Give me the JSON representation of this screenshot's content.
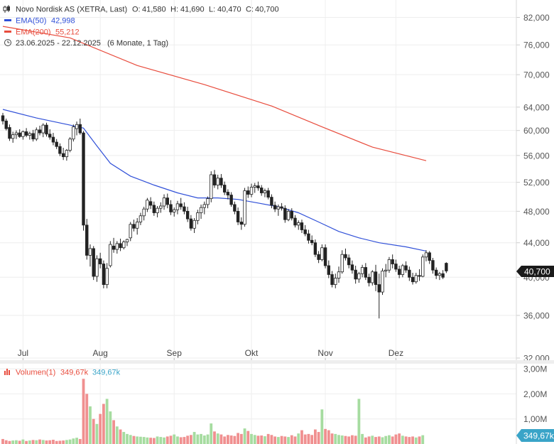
{
  "legend": {
    "title": "Novo Nordisk AS (XETRA, Last)",
    "ohlc": [
      {
        "label": "O:",
        "value": "41,580"
      },
      {
        "label": "H:",
        "value": "41,690"
      },
      {
        "label": "L:",
        "value": "40,470"
      },
      {
        "label": "C:",
        "value": "40,700"
      }
    ],
    "ema50": {
      "label": "EMA(50)",
      "value": "42,998",
      "color": "#3050d8"
    },
    "ema200": {
      "label": "EMA(200)",
      "value": "55,212",
      "color": "#e84c3d"
    },
    "range": "23.06.2025 - 22.12.2025",
    "range_note": "(6 Monate, 1 Tag)"
  },
  "last_price_badge": "40,700",
  "volume_legend": {
    "label": "Volumen(1)",
    "value_red": "349,67k",
    "value_blue": "349,67k"
  },
  "volume_badge": "349,67k",
  "colors": {
    "up": "#a6dca0",
    "down": "#f09090",
    "ema50": "#3050d8",
    "ema200": "#e84c3d",
    "badge": "#1a1a1a",
    "vol_badge": "#3aa4c8"
  },
  "chart_data": [
    {
      "type": "candlestick",
      "x_labels": [
        "Jul",
        "Aug",
        "Sep",
        "Okt",
        "Nov",
        "Dez"
      ],
      "x_label_index": [
        6,
        29,
        51,
        74,
        96,
        117
      ],
      "y_ticks": [
        "82,000",
        "76,000",
        "70,000",
        "64,000",
        "60,000",
        "56,000",
        "52,000",
        "48,000",
        "44,000",
        "40,000",
        "36,000",
        "32,000"
      ],
      "y_tick_values": [
        82,
        76,
        70,
        64,
        60,
        56,
        52,
        48,
        44,
        40,
        36,
        32
      ],
      "y_scale": "log",
      "ylim": [
        32,
        85
      ],
      "candles_ohlc": [
        [
          62.5,
          63.0,
          61.0,
          61.6
        ],
        [
          61.6,
          62.0,
          60.0,
          60.3
        ],
        [
          60.5,
          61.0,
          58.3,
          58.7
        ],
        [
          58.7,
          59.8,
          58.0,
          59.3
        ],
        [
          59.3,
          60.0,
          58.6,
          59.6
        ],
        [
          59.6,
          60.2,
          58.8,
          59.0
        ],
        [
          59.0,
          60.0,
          58.5,
          59.8
        ],
        [
          59.8,
          60.4,
          58.9,
          59.2
        ],
        [
          59.2,
          59.8,
          58.5,
          59.5
        ],
        [
          59.5,
          60.1,
          58.2,
          58.6
        ],
        [
          58.6,
          60.5,
          58.3,
          60.1
        ],
        [
          60.1,
          60.8,
          59.2,
          59.6
        ],
        [
          59.6,
          61.2,
          58.9,
          60.9
        ],
        [
          60.9,
          61.3,
          59.0,
          59.4
        ],
        [
          59.4,
          60.2,
          58.5,
          58.9
        ],
        [
          58.9,
          59.6,
          57.6,
          58.1
        ],
        [
          58.1,
          58.6,
          57.0,
          57.4
        ],
        [
          57.4,
          57.9,
          55.9,
          56.3
        ],
        [
          56.3,
          57.2,
          55.3,
          55.8
        ],
        [
          55.8,
          57.0,
          55.2,
          56.8
        ],
        [
          56.8,
          58.9,
          56.5,
          58.6
        ],
        [
          58.6,
          61.0,
          58.2,
          60.6
        ],
        [
          60.3,
          61.5,
          59.2,
          61.0
        ],
        [
          61.0,
          62.0,
          59.3,
          59.6
        ],
        [
          59.6,
          59.9,
          45.5,
          46.2
        ],
        [
          46.2,
          47.0,
          42.0,
          42.5
        ],
        [
          42.5,
          43.8,
          41.2,
          43.3
        ],
        [
          43.3,
          43.6,
          39.7,
          40.1
        ],
        [
          40.1,
          42.5,
          39.5,
          42.1
        ],
        [
          42.1,
          42.8,
          41.0,
          41.5
        ],
        [
          41.5,
          41.9,
          38.8,
          39.2
        ],
        [
          39.2,
          41.6,
          38.8,
          41.0
        ],
        [
          41.3,
          44.2,
          41.1,
          43.8
        ],
        [
          43.6,
          44.6,
          42.8,
          43.2
        ],
        [
          43.2,
          44.2,
          42.7,
          43.9
        ],
        [
          43.9,
          44.5,
          43.0,
          43.4
        ],
        [
          43.4,
          44.3,
          43.2,
          44.1
        ],
        [
          44.1,
          44.5,
          43.6,
          44.4
        ],
        [
          44.6,
          46.6,
          44.2,
          46.3
        ],
        [
          46.3,
          46.9,
          45.4,
          45.8
        ],
        [
          45.8,
          47.1,
          45.0,
          46.6
        ],
        [
          46.6,
          47.8,
          46.2,
          47.4
        ],
        [
          47.4,
          48.6,
          46.8,
          48.3
        ],
        [
          48.3,
          49.8,
          47.9,
          49.5
        ],
        [
          49.3,
          49.9,
          48.3,
          48.8
        ],
        [
          48.8,
          49.3,
          47.4,
          47.8
        ],
        [
          47.8,
          48.7,
          47.2,
          48.4
        ],
        [
          48.4,
          49.2,
          47.8,
          48.7
        ],
        [
          48.7,
          50.3,
          48.2,
          49.8
        ],
        [
          49.8,
          50.4,
          48.4,
          48.9
        ],
        [
          48.9,
          49.5,
          47.5,
          47.9
        ],
        [
          47.9,
          48.5,
          47.3,
          48.2
        ],
        [
          48.2,
          49.4,
          47.6,
          49.0
        ],
        [
          49.0,
          49.8,
          48.2,
          48.6
        ],
        [
          48.6,
          49.2,
          47.6,
          48.0
        ],
        [
          48.0,
          48.6,
          46.6,
          47.0
        ],
        [
          47.0,
          47.5,
          45.5,
          45.8
        ],
        [
          45.8,
          47.1,
          45.2,
          46.8
        ],
        [
          46.8,
          48.2,
          46.3,
          47.8
        ],
        [
          47.8,
          48.9,
          47.0,
          48.5
        ],
        [
          48.5,
          49.3,
          47.6,
          48.9
        ],
        [
          48.9,
          50.0,
          48.4,
          49.7
        ],
        [
          49.7,
          53.6,
          49.2,
          53.1
        ],
        [
          53.1,
          53.8,
          51.2,
          51.6
        ],
        [
          51.6,
          53.1,
          51.0,
          52.6
        ],
        [
          52.6,
          53.2,
          51.2,
          51.6
        ],
        [
          51.6,
          52.1,
          50.2,
          50.6
        ],
        [
          50.6,
          51.0,
          49.6,
          50.2
        ],
        [
          50.2,
          50.6,
          48.6,
          48.9
        ],
        [
          48.9,
          49.3,
          47.6,
          48.0
        ],
        [
          48.0,
          48.5,
          46.2,
          46.6
        ],
        [
          46.6,
          47.2,
          45.6,
          46.3
        ],
        [
          46.3,
          51.2,
          46.0,
          50.8
        ],
        [
          50.8,
          51.4,
          49.8,
          50.3
        ],
        [
          50.3,
          51.8,
          49.9,
          51.3
        ],
        [
          51.3,
          51.9,
          50.5,
          51.5
        ],
        [
          51.5,
          52.1,
          50.8,
          51.2
        ],
        [
          51.2,
          51.6,
          50.1,
          50.5
        ],
        [
          50.5,
          51.1,
          49.9,
          50.8
        ],
        [
          50.8,
          51.2,
          49.6,
          49.9
        ],
        [
          49.9,
          50.3,
          48.4,
          48.8
        ],
        [
          48.8,
          49.3,
          47.9,
          48.3
        ],
        [
          48.3,
          48.9,
          47.4,
          48.6
        ],
        [
          48.6,
          49.1,
          48.1,
          48.4
        ],
        [
          48.4,
          48.8,
          46.5,
          46.9
        ],
        [
          46.9,
          48.3,
          46.7,
          48.0
        ],
        [
          48.0,
          48.4,
          46.8,
          47.1
        ],
        [
          47.1,
          47.5,
          45.9,
          46.2
        ],
        [
          46.2,
          46.8,
          45.6,
          46.5
        ],
        [
          46.5,
          46.9,
          45.2,
          45.6
        ],
        [
          45.6,
          46.2,
          44.8,
          45.1
        ],
        [
          45.1,
          45.6,
          43.9,
          44.3
        ],
        [
          44.3,
          44.9,
          43.7,
          44.0
        ],
        [
          44.0,
          44.4,
          42.3,
          42.6
        ],
        [
          42.6,
          43.0,
          41.6,
          42.0
        ],
        [
          42.0,
          43.8,
          41.8,
          43.4
        ],
        [
          43.4,
          43.8,
          41.0,
          41.3
        ],
        [
          41.3,
          41.9,
          39.9,
          40.3
        ],
        [
          40.3,
          40.7,
          38.9,
          39.2
        ],
        [
          39.2,
          40.4,
          38.8,
          39.9
        ],
        [
          39.9,
          41.2,
          39.4,
          40.6
        ],
        [
          40.6,
          43.1,
          40.4,
          42.6
        ],
        [
          42.6,
          43.3,
          41.9,
          42.2
        ],
        [
          42.2,
          42.6,
          41.0,
          41.4
        ],
        [
          41.4,
          41.9,
          40.4,
          40.8
        ],
        [
          40.8,
          41.3,
          39.3,
          39.8
        ],
        [
          39.8,
          40.6,
          39.4,
          40.4
        ],
        [
          40.4,
          41.4,
          40.0,
          41.1
        ],
        [
          41.1,
          41.6,
          39.7,
          40.0
        ],
        [
          40.0,
          40.4,
          39.0,
          39.4
        ],
        [
          39.4,
          40.8,
          39.1,
          40.6
        ],
        [
          40.6,
          41.4,
          38.5,
          39.2
        ],
        [
          39.2,
          40.4,
          35.7,
          38.4
        ],
        [
          38.4,
          41.0,
          38.1,
          40.7
        ],
        [
          40.7,
          41.5,
          40.0,
          40.8
        ],
        [
          40.8,
          42.3,
          40.5,
          42.0
        ],
        [
          42.0,
          42.6,
          41.0,
          41.5
        ],
        [
          41.5,
          42.0,
          40.6,
          40.9
        ],
        [
          40.9,
          41.3,
          39.9,
          40.3
        ],
        [
          40.3,
          41.5,
          40.0,
          41.3
        ],
        [
          41.3,
          41.8,
          40.5,
          40.8
        ],
        [
          40.8,
          41.2,
          39.6,
          40.0
        ],
        [
          40.0,
          40.5,
          39.2,
          39.5
        ],
        [
          39.5,
          40.5,
          39.3,
          40.2
        ],
        [
          40.2,
          40.9,
          39.6,
          40.1
        ],
        [
          40.1,
          42.6,
          40.0,
          42.3
        ],
        [
          42.3,
          43.1,
          41.8,
          42.8
        ],
        [
          42.8,
          43.0,
          41.5,
          41.9
        ],
        [
          41.9,
          42.2,
          40.4,
          40.8
        ],
        [
          40.8,
          41.1,
          39.8,
          40.2
        ],
        [
          40.2,
          40.6,
          39.7,
          40.4
        ],
        [
          40.4,
          40.8,
          39.8,
          40.0
        ],
        [
          41.58,
          41.69,
          40.47,
          40.7
        ]
      ]
    },
    {
      "type": "line",
      "series": [
        {
          "name": "EMA(50)",
          "color": "#3050d8",
          "points": [
            [
              0,
              63.6
            ],
            [
              10,
              62.1
            ],
            [
              20,
              60.9
            ],
            [
              24,
              60.4
            ],
            [
              28,
              57.5
            ],
            [
              32,
              54.8
            ],
            [
              38,
              52.9
            ],
            [
              45,
              51.6
            ],
            [
              52,
              50.5
            ],
            [
              58,
              49.8
            ],
            [
              64,
              49.8
            ],
            [
              70,
              49.6
            ],
            [
              76,
              49.1
            ],
            [
              82,
              48.6
            ],
            [
              88,
              47.8
            ],
            [
              94,
              46.6
            ],
            [
              100,
              45.4
            ],
            [
              106,
              44.6
            ],
            [
              112,
              44.0
            ],
            [
              120,
              43.5
            ],
            [
              126,
              43.0
            ]
          ]
        },
        {
          "name": "EMA(200)",
          "color": "#e84c3d",
          "points": [
            [
              0,
              80.0
            ],
            [
              20,
              77.5
            ],
            [
              40,
              71.8
            ],
            [
              60,
              68.1
            ],
            [
              80,
              64.2
            ],
            [
              95,
              60.6
            ],
            [
              110,
              57.3
            ],
            [
              126,
              55.2
            ]
          ]
        }
      ]
    },
    {
      "type": "bar",
      "name": "Volumen(1)",
      "y_ticks": [
        "3,00M",
        "2,00M",
        "1,00M"
      ],
      "y_tick_values": [
        3.0,
        2.0,
        1.0
      ],
      "ylim": [
        0,
        3.2
      ],
      "values_m": [
        0.2,
        0.15,
        0.12,
        0.14,
        0.15,
        0.13,
        0.18,
        0.12,
        0.14,
        0.16,
        0.15,
        0.18,
        0.16,
        0.14,
        0.15,
        0.17,
        0.12,
        0.13,
        0.14,
        0.16,
        0.18,
        0.22,
        0.25,
        0.2,
        2.6,
        2.0,
        1.5,
        1.0,
        0.8,
        1.2,
        1.6,
        1.8,
        1.3,
        0.95,
        0.7,
        0.58,
        0.48,
        0.4,
        0.36,
        0.32,
        0.3,
        0.29,
        0.28,
        0.26,
        0.25,
        0.24,
        0.3,
        0.28,
        0.26,
        0.3,
        0.33,
        0.38,
        0.3,
        0.27,
        0.28,
        0.33,
        0.36,
        0.48,
        0.38,
        0.4,
        0.34,
        0.38,
        0.82,
        0.5,
        0.42,
        0.38,
        0.3,
        0.36,
        0.34,
        0.32,
        0.44,
        0.4,
        0.62,
        0.52,
        0.4,
        0.36,
        0.33,
        0.34,
        0.31,
        0.4,
        0.36,
        0.3,
        0.28,
        0.32,
        0.3,
        0.28,
        0.35,
        0.3,
        0.42,
        0.55,
        0.38,
        0.4,
        0.36,
        0.58,
        0.48,
        1.38,
        0.6,
        0.55,
        0.42,
        0.4,
        0.36,
        0.34,
        0.32,
        0.3,
        0.35,
        0.33,
        1.8,
        0.4,
        0.26,
        0.3,
        0.33,
        0.28,
        0.3,
        0.27,
        0.32,
        0.35,
        0.3,
        0.38,
        0.42,
        0.33,
        0.3,
        0.28,
        0.3,
        0.26,
        0.3,
        0.35
      ]
    }
  ]
}
